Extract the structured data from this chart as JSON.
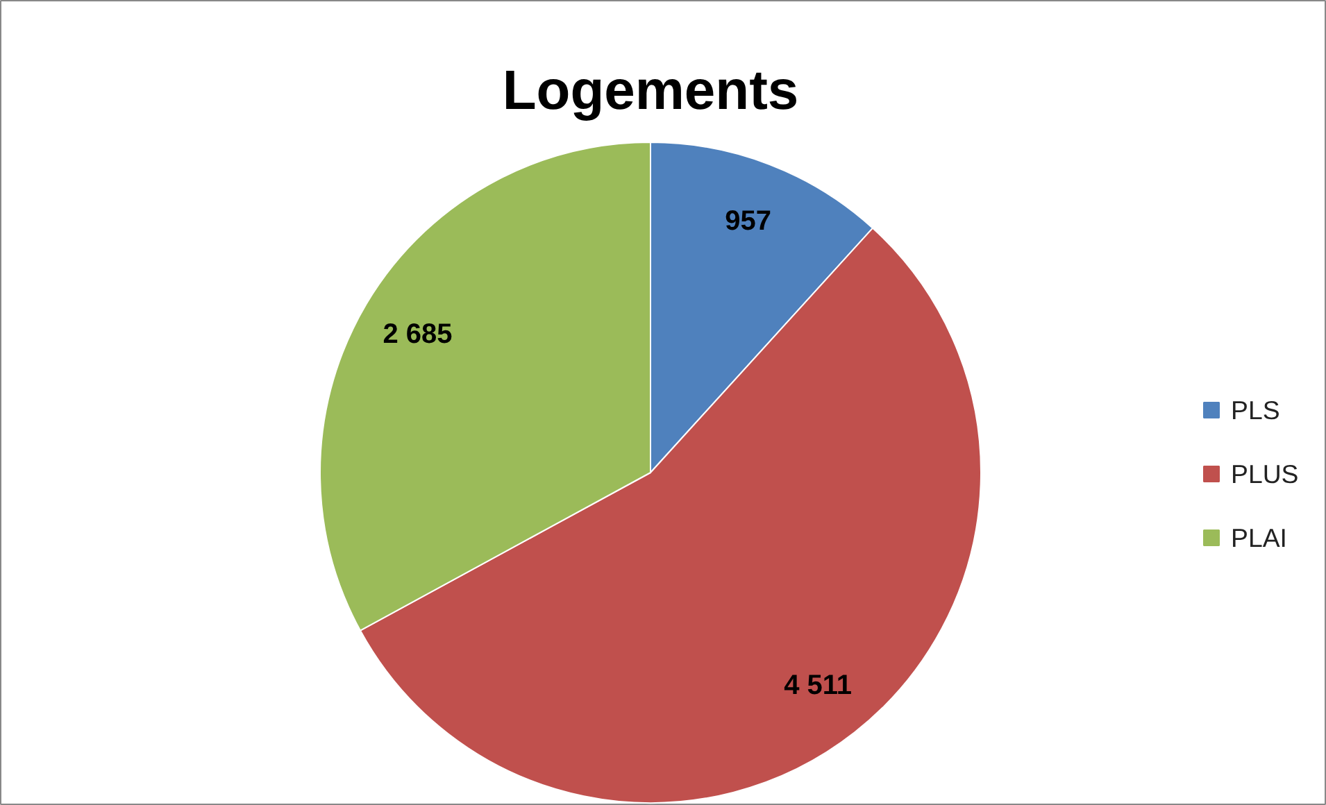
{
  "chart_data": {
    "type": "pie",
    "title": "Logements",
    "categories": [
      "PLS",
      "PLUS",
      "PLAI"
    ],
    "values": [
      957,
      4511,
      2685
    ],
    "colors": [
      "#4f81bd",
      "#c0504d",
      "#9bbb59"
    ],
    "value_labels": [
      "957",
      "4 511",
      "2 685"
    ],
    "legend": "right"
  }
}
